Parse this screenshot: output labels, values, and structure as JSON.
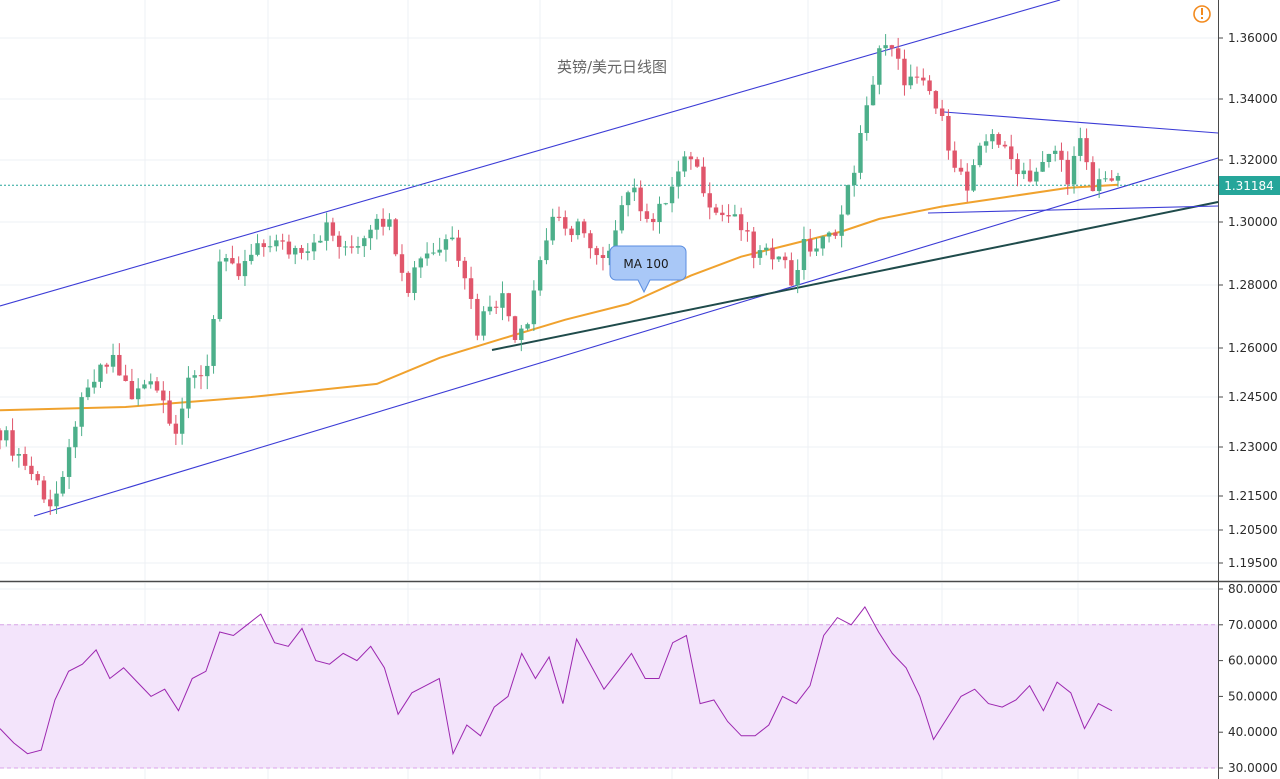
{
  "chart_data": [
    {
      "type": "candlestick",
      "title": "英镑/美元日线图",
      "ylim": [
        1.19,
        1.366
      ],
      "y_ticks": [
        1.195,
        1.205,
        1.215,
        1.23,
        1.245,
        1.26,
        1.28,
        1.3,
        1.32,
        1.34,
        1.36
      ],
      "y_tick_labels": [
        "1.19500",
        "1.20500",
        "1.21500",
        "1.23000",
        "1.24500",
        "1.26000",
        "1.28000",
        "1.30000",
        "1.32000",
        "1.34000",
        "1.36000"
      ],
      "grid": true,
      "last_price": "1.31184",
      "last_price_value": 1.31184,
      "colors": {
        "up": "#4caf8a",
        "down": "#e0566b",
        "ma": "#f0a22e",
        "channel": "#3b3bd6",
        "trend": "#1f4b4b",
        "last_price": "#26a69a",
        "alert": "#f28a1e"
      },
      "alert_icon": "alert-icon",
      "close_path": [
        [
          0,
          1.235
        ],
        [
          4,
          1.225
        ],
        [
          8,
          1.213
        ],
        [
          10,
          1.218
        ],
        [
          12,
          1.238
        ],
        [
          15,
          1.25
        ],
        [
          18,
          1.257
        ],
        [
          21,
          1.244
        ],
        [
          24,
          1.252
        ],
        [
          26,
          1.244
        ],
        [
          28,
          1.236
        ],
        [
          30,
          1.248
        ],
        [
          33,
          1.255
        ],
        [
          35,
          1.287
        ],
        [
          38,
          1.283
        ],
        [
          40,
          1.289
        ],
        [
          43,
          1.294
        ],
        [
          46,
          1.291
        ],
        [
          49,
          1.293
        ],
        [
          52,
          1.298
        ],
        [
          55,
          1.29
        ],
        [
          58,
          1.296
        ],
        [
          60,
          1.303
        ],
        [
          62,
          1.299
        ],
        [
          65,
          1.28
        ],
        [
          67,
          1.29
        ],
        [
          70,
          1.292
        ],
        [
          72,
          1.297
        ],
        [
          74,
          1.284
        ],
        [
          76,
          1.266
        ],
        [
          78,
          1.275
        ],
        [
          80,
          1.276
        ],
        [
          82,
          1.265
        ],
        [
          84,
          1.27
        ],
        [
          86,
          1.288
        ],
        [
          88,
          1.302
        ],
        [
          90,
          1.296
        ],
        [
          92,
          1.3
        ],
        [
          94,
          1.29
        ],
        [
          96,
          1.286
        ],
        [
          98,
          1.3
        ],
        [
          100,
          1.311
        ],
        [
          102,
          1.306
        ],
        [
          104,
          1.3
        ],
        [
          106,
          1.307
        ],
        [
          108,
          1.315
        ],
        [
          110,
          1.322
        ],
        [
          112,
          1.312
        ],
        [
          114,
          1.303
        ],
        [
          116,
          1.302
        ],
        [
          118,
          1.298
        ],
        [
          120,
          1.29
        ],
        [
          122,
          1.289
        ],
        [
          124,
          1.292
        ],
        [
          126,
          1.281
        ],
        [
          128,
          1.292
        ],
        [
          130,
          1.292
        ],
        [
          132,
          1.295
        ],
        [
          134,
          1.302
        ],
        [
          136,
          1.318
        ],
        [
          138,
          1.336
        ],
        [
          140,
          1.357
        ],
        [
          142,
          1.355
        ],
        [
          144,
          1.347
        ],
        [
          146,
          1.345
        ],
        [
          148,
          1.342
        ],
        [
          150,
          1.332
        ],
        [
          152,
          1.32
        ],
        [
          154,
          1.31
        ],
        [
          156,
          1.322
        ],
        [
          158,
          1.33
        ],
        [
          160,
          1.322
        ],
        [
          162,
          1.318
        ],
        [
          164,
          1.315
        ],
        [
          166,
          1.318
        ],
        [
          168,
          1.323
        ],
        [
          170,
          1.315
        ],
        [
          172,
          1.325
        ],
        [
          174,
          1.31
        ],
        [
          176,
          1.316
        ],
        [
          178,
          1.312
        ]
      ],
      "ma100": {
        "name": "MA 100",
        "values": [
          [
            0,
            1.241
          ],
          [
            20,
            1.242
          ],
          [
            40,
            1.245
          ],
          [
            60,
            1.249
          ],
          [
            70,
            1.257
          ],
          [
            80,
            1.263
          ],
          [
            90,
            1.269
          ],
          [
            100,
            1.274
          ],
          [
            110,
            1.283
          ],
          [
            118,
            1.289
          ],
          [
            126,
            1.293
          ],
          [
            134,
            1.297
          ],
          [
            140,
            1.301
          ],
          [
            150,
            1.305
          ],
          [
            160,
            1.308
          ],
          [
            170,
            1.311
          ],
          [
            178,
            1.312
          ]
        ]
      },
      "annotations": [
        "MA 100"
      ]
    },
    {
      "type": "line",
      "ylim": [
        29.0,
        81.0
      ],
      "y_ticks": [
        30,
        40,
        50,
        60,
        70,
        80
      ],
      "y_tick_labels": [
        "30.0000",
        "40.0000",
        "50.0000",
        "60.0000",
        "70.0000",
        "80.0000"
      ],
      "band": [
        30,
        70
      ],
      "grid": true,
      "series": [
        {
          "values": [
            41,
            37,
            34,
            35,
            49,
            57,
            59,
            63,
            55,
            58,
            54,
            50,
            52,
            46,
            55,
            57,
            68,
            67,
            70,
            73,
            65,
            64,
            69,
            60,
            59,
            62,
            60,
            64,
            58,
            45,
            51,
            53,
            55,
            34,
            42,
            39,
            47,
            50,
            62,
            55,
            61,
            48,
            66,
            59,
            52,
            57,
            62,
            55,
            55,
            65,
            67,
            48,
            49,
            43,
            39,
            39,
            42,
            50,
            48,
            53,
            67,
            72,
            70,
            75,
            68,
            62,
            58,
            50,
            38,
            44,
            50,
            52,
            48,
            47,
            49,
            53,
            46,
            54,
            51,
            41,
            48,
            46
          ]
        }
      ]
    }
  ]
}
